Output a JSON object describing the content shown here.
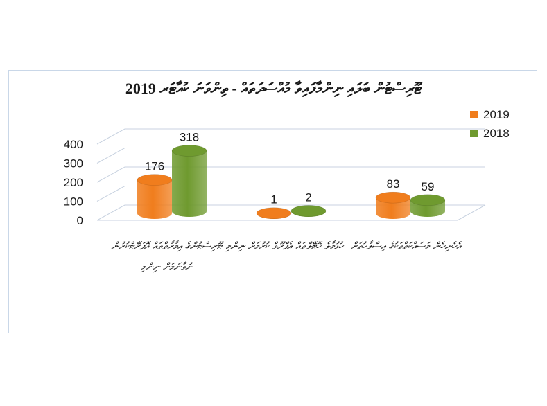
{
  "chart_data": {
    "type": "bar",
    "title": "ޓޫރިސްޓުން ބަލައި ނިންމާފައިވާ މުއްސަދަތައް - ތިންވަނަ ކުއާޓަރ 2019",
    "categories": [
      "ޓޫރިސްޓުންގެ އިމާރާތްތައް އޮޕަރޭޓްކުރުން ނުވާނަމަށް ނިންމި",
      "ހުޅުމާލެ ހޮޓޭލްތައް އެޕްރޫވް ކުރުމަށް ނިންމި",
      "އެހެނިހެން މަސައްކަތްތަކުގެ އިސްލާހުތަށް"
    ],
    "series": [
      {
        "name": "2019",
        "values": [
          176,
          1,
          83
        ]
      },
      {
        "name": "2018",
        "values": [
          318,
          2,
          59
        ]
      }
    ],
    "ylim": [
      0,
      400
    ],
    "yticks": [
      0,
      100,
      200,
      300,
      400
    ],
    "xlabel": "",
    "ylabel": "",
    "legend_position": "top-right"
  },
  "colors": {
    "series_2019": "#f07d1d",
    "series_2018": "#6f9a2f",
    "grid": "#c8d2e0"
  }
}
